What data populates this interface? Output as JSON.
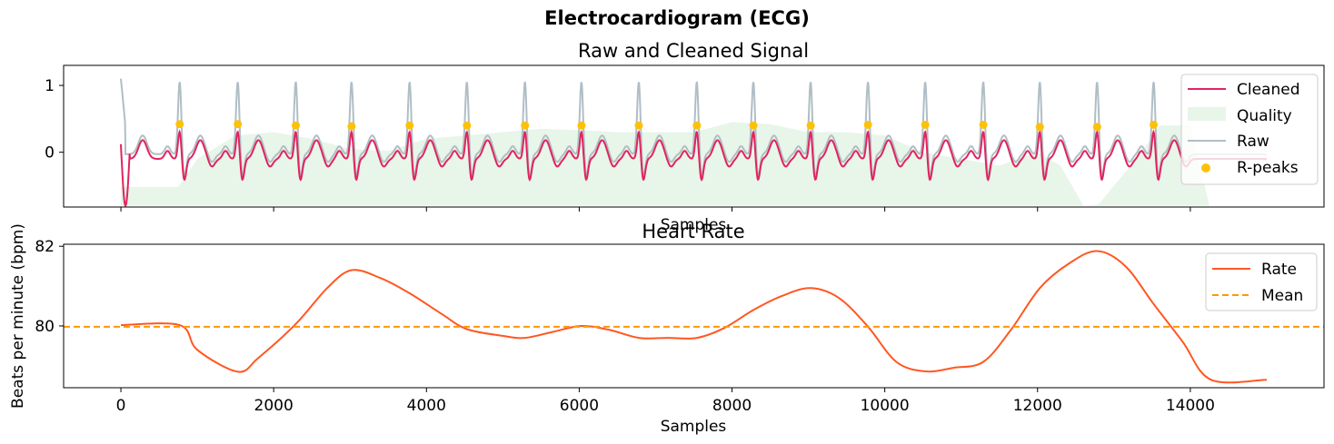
{
  "figure": {
    "title": "Electrocardiogram (ECG)"
  },
  "colors": {
    "cleaned": "#E0245E",
    "raw": "#B0BEC5",
    "quality": "#E8F5E9",
    "rpeaks": "#FFC107",
    "rate": "#FF5722",
    "mean": "#FF9800"
  },
  "chart_data": [
    {
      "type": "line",
      "title": "Raw and Cleaned Signal",
      "xlabel": "Samples",
      "ylabel": "",
      "xlim": [
        -750,
        15750
      ],
      "ylim": [
        -0.82,
        1.3
      ],
      "yticks": [
        0,
        1
      ],
      "xticks_visible": false,
      "legend": {
        "placement": "top-right",
        "entries": [
          "Cleaned",
          "Quality",
          "Raw",
          "R-peaks"
        ]
      },
      "series": [
        {
          "name": "Cleaned",
          "kind": "line",
          "note_shape": "ecg",
          "x_range": [
            0,
            15000
          ],
          "baseline": -0.1,
          "r_amplitude": 0.42,
          "s_amplitude": -0.32,
          "start_dip": -0.8
        },
        {
          "name": "Raw",
          "kind": "line",
          "note_shape": "ecg",
          "x_range": [
            0,
            15000
          ],
          "baseline": -0.03,
          "r_amplitude": 1.1,
          "s_amplitude": -0.35
        },
        {
          "name": "Quality",
          "kind": "area",
          "x": [
            0,
            750,
            1000,
            1500,
            2000,
            2500,
            3000,
            3500,
            4000,
            4500,
            5000,
            5500,
            6000,
            6500,
            7000,
            7500,
            8000,
            8500,
            9000,
            9500,
            10000,
            10500,
            11000,
            11500,
            12000,
            12300,
            12600,
            12800,
            13000,
            13300,
            13600,
            14000,
            14250,
            15000
          ],
          "values": [
            -0.52,
            -0.52,
            -0.1,
            0.25,
            0.3,
            0.2,
            0.05,
            0.02,
            0.2,
            0.25,
            0.3,
            0.35,
            0.33,
            0.3,
            0.3,
            0.3,
            0.45,
            0.42,
            0.3,
            0.3,
            0.25,
            0.0,
            -0.1,
            -0.2,
            0.0,
            -0.2,
            -0.8,
            -0.78,
            -0.5,
            -0.1,
            0.4,
            0.4,
            -0.8,
            -0.8
          ]
        },
        {
          "name": "R-peaks",
          "kind": "scatter",
          "x": [
            770,
            1530,
            2290,
            3020,
            3780,
            4530,
            5290,
            6030,
            6780,
            7540,
            8280,
            9030,
            9780,
            10530,
            11290,
            12030,
            12780,
            13520
          ],
          "values": [
            0.42,
            0.42,
            0.4,
            0.39,
            0.4,
            0.4,
            0.4,
            0.4,
            0.4,
            0.4,
            0.4,
            0.4,
            0.41,
            0.41,
            0.41,
            0.38,
            0.38,
            0.41
          ]
        }
      ]
    },
    {
      "type": "line",
      "title": "Heart Rate",
      "xlabel": "Samples",
      "ylabel": "Beats per minute (bpm)",
      "xlim": [
        -750,
        15750
      ],
      "ylim": [
        78.45,
        82.05
      ],
      "yticks": [
        80,
        82
      ],
      "xticks": [
        0,
        2000,
        4000,
        6000,
        8000,
        10000,
        12000,
        14000
      ],
      "legend": {
        "placement": "top-right",
        "entries": [
          "Rate",
          "Mean"
        ]
      },
      "series": [
        {
          "name": "Rate",
          "x": [
            0,
            770,
            1000,
            1530,
            1800,
            2290,
            2700,
            3020,
            3400,
            3780,
            4200,
            4530,
            5000,
            5290,
            5650,
            6030,
            6400,
            6780,
            7160,
            7540,
            7900,
            8280,
            8650,
            9030,
            9400,
            9780,
            10150,
            10530,
            10900,
            11290,
            11650,
            12030,
            12400,
            12780,
            13150,
            13520,
            13900,
            14270,
            15000
          ],
          "values": [
            80.02,
            80.02,
            79.4,
            78.85,
            79.2,
            80.05,
            80.95,
            81.4,
            81.2,
            80.82,
            80.3,
            79.92,
            79.75,
            79.7,
            79.85,
            80.0,
            79.9,
            79.7,
            79.7,
            79.7,
            79.95,
            80.4,
            80.75,
            80.95,
            80.7,
            79.98,
            79.1,
            78.86,
            78.95,
            79.1,
            79.9,
            80.95,
            81.55,
            81.88,
            81.5,
            80.55,
            79.6,
            78.65,
            78.65
          ]
        },
        {
          "name": "Mean",
          "kind": "hline",
          "value": 79.98
        }
      ]
    }
  ]
}
